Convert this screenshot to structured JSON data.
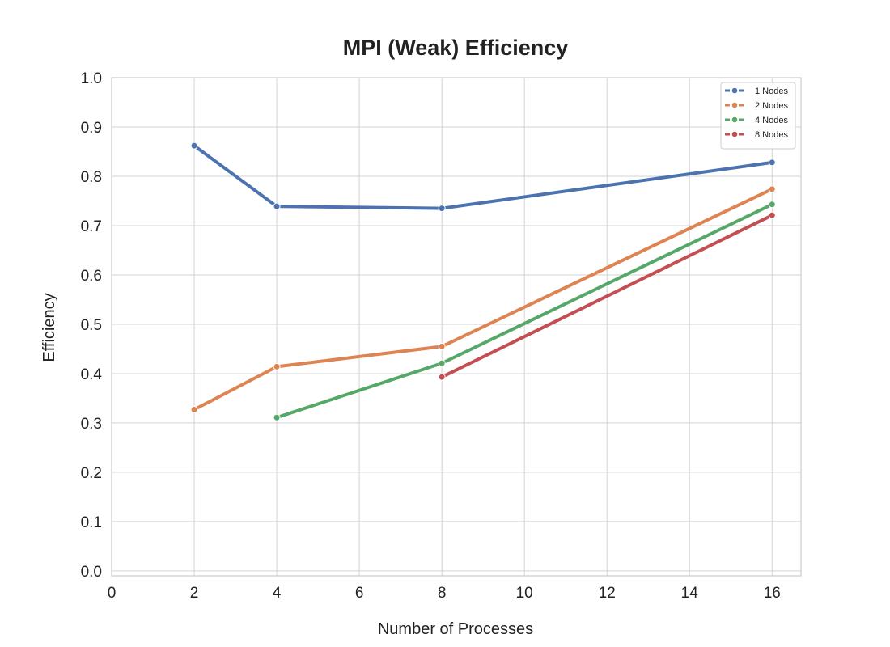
{
  "chart_data": {
    "type": "line",
    "title": "MPI (Weak) Efficiency",
    "xlabel": "Number of Processes",
    "ylabel": "Efficiency",
    "xlim": [
      0,
      16.7
    ],
    "ylim": [
      -0.01,
      1.0
    ],
    "x_ticks": [
      0,
      2,
      4,
      6,
      8,
      10,
      12,
      14,
      16
    ],
    "y_ticks": [
      0.0,
      0.1,
      0.2,
      0.3,
      0.4,
      0.5,
      0.6,
      0.7,
      0.8,
      0.9,
      1.0
    ],
    "y_tick_labels": [
      "0.0",
      "0.1",
      "0.2",
      "0.3",
      "0.4",
      "0.5",
      "0.6",
      "0.7",
      "0.8",
      "0.9",
      "1.0"
    ],
    "grid": true,
    "legend_position": "top-right",
    "series": [
      {
        "name": "1 Nodes",
        "color": "#4c72b0",
        "points": [
          [
            2,
            0.862
          ],
          [
            4,
            0.739
          ],
          [
            8,
            0.735
          ],
          [
            16,
            0.828
          ]
        ]
      },
      {
        "name": "2 Nodes",
        "color": "#dd8452",
        "points": [
          [
            2,
            0.327
          ],
          [
            4,
            0.414
          ],
          [
            8,
            0.455
          ],
          [
            16,
            0.774
          ]
        ]
      },
      {
        "name": "4 Nodes",
        "color": "#55a868",
        "points": [
          [
            4,
            0.311
          ],
          [
            8,
            0.421
          ],
          [
            16,
            0.743
          ]
        ]
      },
      {
        "name": "8 Nodes",
        "color": "#c44e52",
        "points": [
          [
            8,
            0.393
          ],
          [
            16,
            0.721
          ]
        ]
      }
    ]
  }
}
